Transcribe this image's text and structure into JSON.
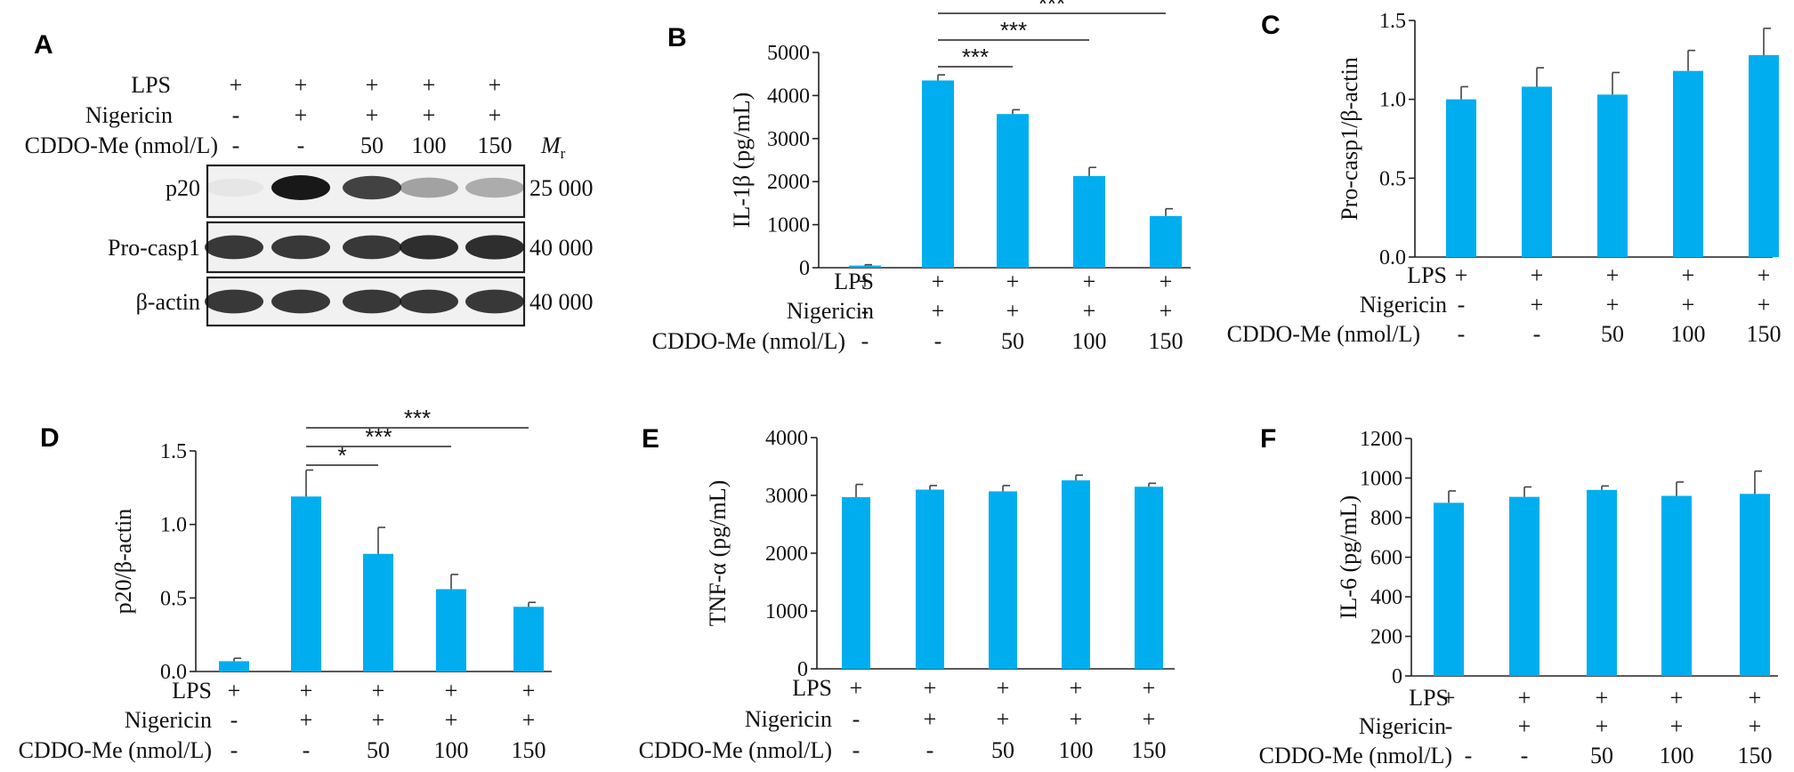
{
  "figure": {
    "treatments": {
      "row_labels": [
        "LPS",
        "Nigericin",
        "CDDO-Me (nmol/L)"
      ],
      "values": [
        [
          "+",
          "+",
          "+",
          "+",
          "+"
        ],
        [
          "-",
          "+",
          "+",
          "+",
          "+"
        ],
        [
          "-",
          "-",
          "50",
          "100",
          "150"
        ]
      ]
    },
    "blot": {
      "letter": "A",
      "mr_label": "M",
      "mr_sub": "r",
      "bands": [
        {
          "label": "p20",
          "mr": "25 000",
          "intensity": [
            0.03,
            1.0,
            0.8,
            0.35,
            0.3
          ]
        },
        {
          "label": "Pro-casp1",
          "mr": "40 000",
          "intensity": [
            0.85,
            0.85,
            0.85,
            0.9,
            0.9
          ]
        },
        {
          "label": "β-actin",
          "mr": "40 000",
          "intensity": [
            0.85,
            0.85,
            0.85,
            0.85,
            0.85
          ]
        }
      ]
    }
  },
  "chart_data": [
    {
      "type": "bar",
      "letter": "B",
      "ylabel": "IL-1β (pg/mL)",
      "categories": [
        "1",
        "2",
        "3",
        "4",
        "5"
      ],
      "values": [
        50,
        4350,
        3570,
        2130,
        1200
      ],
      "errors": [
        20,
        130,
        100,
        200,
        170
      ],
      "ylim": [
        0,
        5000
      ],
      "yticks": [
        "0",
        "1000",
        "2000",
        "3000",
        "4000",
        "5000"
      ],
      "significance": [
        {
          "from": 1,
          "to": 2,
          "label": "***"
        },
        {
          "from": 1,
          "to": 3,
          "label": "***"
        },
        {
          "from": 1,
          "to": 4,
          "label": "***"
        }
      ]
    },
    {
      "type": "bar",
      "letter": "C",
      "ylabel": "Pro-casp1/β-actin",
      "categories": [
        "1",
        "2",
        "3",
        "4",
        "5"
      ],
      "values": [
        1.0,
        1.08,
        1.03,
        1.18,
        1.28
      ],
      "errors": [
        0.08,
        0.12,
        0.14,
        0.13,
        0.17
      ],
      "ylim": [
        0,
        1.5
      ],
      "yticks": [
        "0.0",
        "0.5",
        "1.0",
        "1.5"
      ],
      "significance": []
    },
    {
      "type": "bar",
      "letter": "D",
      "ylabel": "p20/β-actin",
      "categories": [
        "1",
        "2",
        "3",
        "4",
        "5"
      ],
      "values": [
        0.07,
        1.19,
        0.8,
        0.56,
        0.44
      ],
      "errors": [
        0.02,
        0.18,
        0.18,
        0.1,
        0.03
      ],
      "ylim": [
        0,
        1.5
      ],
      "yticks": [
        "0.0",
        "0.5",
        "1.0",
        "1.5"
      ],
      "significance": [
        {
          "from": 1,
          "to": 2,
          "label": "*"
        },
        {
          "from": 1,
          "to": 3,
          "label": "***"
        },
        {
          "from": 1,
          "to": 4,
          "label": "***"
        }
      ]
    },
    {
      "type": "bar",
      "letter": "E",
      "ylabel": "TNF-α (pg/mL)",
      "categories": [
        "1",
        "2",
        "3",
        "4",
        "5"
      ],
      "values": [
        2970,
        3100,
        3070,
        3260,
        3150
      ],
      "errors": [
        220,
        70,
        100,
        90,
        60
      ],
      "ylim": [
        0,
        4000
      ],
      "yticks": [
        "0",
        "1000",
        "2000",
        "3000",
        "4000"
      ],
      "significance": []
    },
    {
      "type": "bar",
      "letter": "F",
      "ylabel": "IL-6 (pg/mL)",
      "categories": [
        "1",
        "2",
        "3",
        "4",
        "5"
      ],
      "values": [
        875,
        905,
        940,
        910,
        920
      ],
      "errors": [
        60,
        50,
        20,
        70,
        115
      ],
      "ylim": [
        0,
        1200
      ],
      "yticks": [
        "0",
        "200",
        "400",
        "600",
        "800",
        "1000",
        "1200"
      ],
      "significance": []
    }
  ]
}
